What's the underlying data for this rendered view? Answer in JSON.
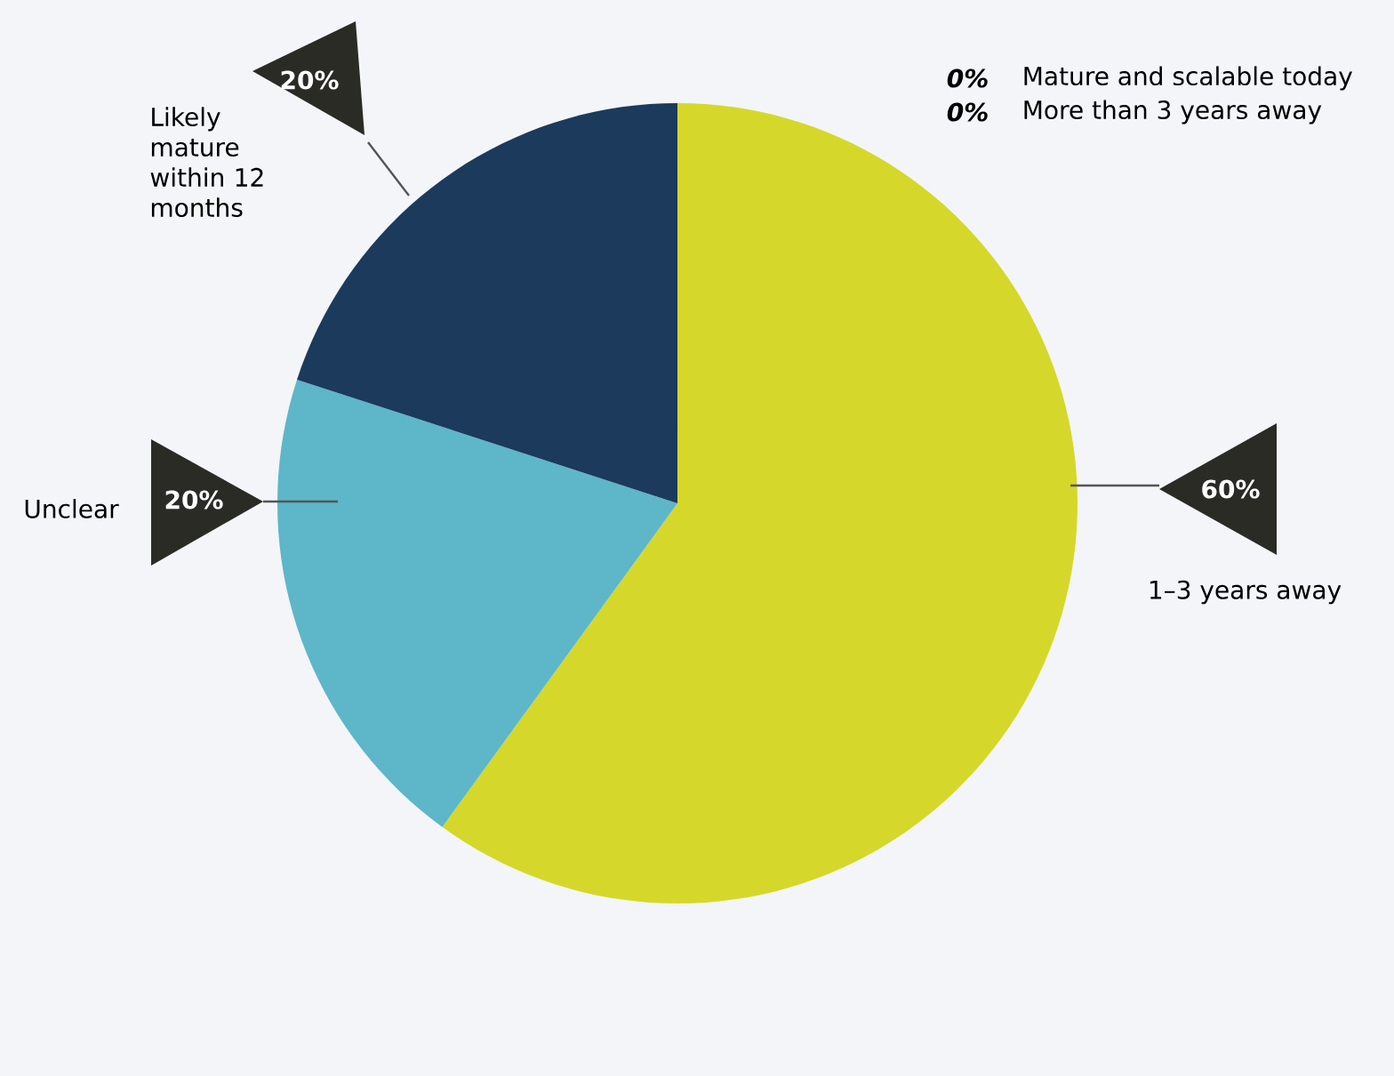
{
  "chart_data": {
    "type": "pie",
    "categories": [
      "1–3 years away",
      "Unclear",
      "Likely mature within 12 months",
      "Mature and scalable today",
      "More than 3 years away"
    ],
    "values": [
      60,
      20,
      20,
      0,
      0
    ],
    "colors": [
      "#d5d82a",
      "#5eb6c9",
      "#1b3a5c",
      "#d5d82a",
      "#1b3a5c"
    ],
    "value_labels": [
      "60%",
      "20%",
      "20%",
      "0%",
      "0%"
    ]
  }
}
